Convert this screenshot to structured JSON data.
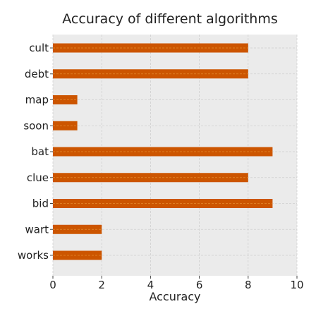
{
  "chart_data": {
    "type": "bar",
    "orientation": "horizontal",
    "title": "Accuracy of different algorithms",
    "xlabel": "Accuracy",
    "ylabel": "",
    "categories": [
      "cult",
      "debt",
      "map",
      "soon",
      "bat",
      "clue",
      "bid",
      "wart",
      "works"
    ],
    "values": [
      8,
      8,
      1,
      1,
      9,
      8,
      9,
      2,
      2
    ],
    "xlim": [
      0,
      10
    ],
    "xticks": [
      0,
      2,
      4,
      6,
      8,
      10
    ],
    "grid": true,
    "bar_color": "#cc5500",
    "bar_stripe_color": "#e38a2c",
    "plot_background": "#ebebeb"
  }
}
